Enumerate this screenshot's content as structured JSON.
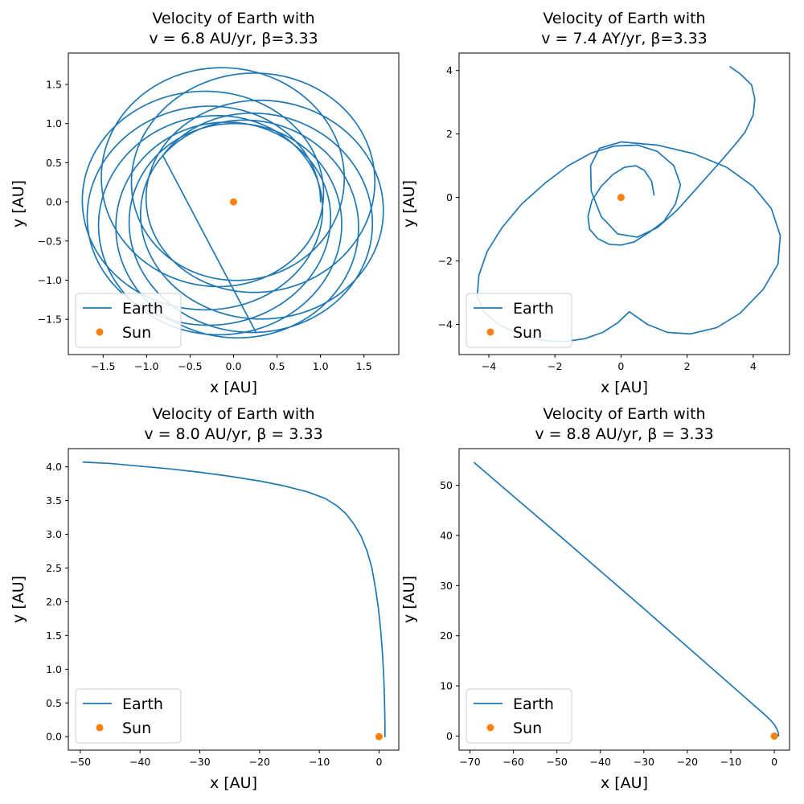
{
  "figure": {
    "background": "#ffffff"
  },
  "colors": {
    "earth": "#1f77b4",
    "sun": "#ff7f0e"
  },
  "chart_data": [
    {
      "type": "line",
      "title": [
        "Velocity of Earth with",
        "v = 6.8 AU/yr, β=3.33"
      ],
      "xlabel": "x [AU]",
      "ylabel": "y [AU]",
      "xlim": [
        -1.9,
        1.9
      ],
      "ylim": [
        -1.95,
        1.9
      ],
      "xticks": [
        -1.5,
        -1.0,
        -0.5,
        0.0,
        0.5,
        1.0,
        1.5
      ],
      "xtick_labels": [
        "−1.5",
        "−1.0",
        "−0.5",
        "0.0",
        "0.5",
        "1.0",
        "1.5"
      ],
      "yticks": [
        -1.5,
        -1.0,
        -0.5,
        0.0,
        0.5,
        1.0,
        1.5
      ],
      "ytick_labels": [
        "−1.5",
        "−1.0",
        "−0.5",
        "0.0",
        "0.5",
        "1.0",
        "1.5"
      ],
      "legend": {
        "placement": "lower-left",
        "entries": [
          "Earth",
          "Sun"
        ]
      },
      "grid": false,
      "series": [
        {
          "name": "Earth",
          "kind": "line",
          "trajectory": {
            "model": "precessing-ellipse",
            "a": 1.37,
            "e": 0.27,
            "precession_deg_per_orbit": 55,
            "orbits": 9.4,
            "start": [
              1.0,
              0.0
            ],
            "end": [
              0.26,
              -1.67
            ]
          }
        },
        {
          "name": "Sun",
          "kind": "point",
          "x": [
            0.0
          ],
          "y": [
            0.0
          ]
        }
      ]
    },
    {
      "type": "line",
      "title": [
        "Velocity of Earth with",
        "v = 7.4 AY/yr, β=3.33"
      ],
      "xlabel": "x [AU]",
      "ylabel": "y [AU]",
      "xlim": [
        -4.9,
        5.1
      ],
      "ylim": [
        -4.95,
        4.55
      ],
      "xticks": [
        -4,
        -2,
        0,
        2,
        4
      ],
      "xtick_labels": [
        "−4",
        "−2",
        "0",
        "2",
        "4"
      ],
      "yticks": [
        -4,
        -2,
        0,
        2,
        4
      ],
      "ytick_labels": [
        "−4",
        "−2",
        "0",
        "2",
        "4"
      ],
      "legend": {
        "placement": "lower-left",
        "entries": [
          "Earth",
          "Sun"
        ]
      },
      "grid": false,
      "series": [
        {
          "name": "Earth",
          "kind": "line",
          "x": [
            1.0,
            0.93,
            0.71,
            0.45,
            0.1,
            -0.25,
            -0.6,
            -0.88,
            -1.0,
            -0.95,
            -0.7,
            -0.35,
            0.0,
            0.4,
            0.85,
            1.3,
            1.65,
            1.8,
            1.6,
            1.1,
            0.5,
            -0.2,
            -0.9,
            -1.6,
            -2.3,
            -3.0,
            -3.6,
            -4.05,
            -4.3,
            -4.35,
            -4.15,
            -3.7,
            -3.1,
            -2.4,
            -1.75,
            -1.1,
            -0.55,
            -0.1,
            0.25,
            0.8,
            1.4,
            2.1,
            2.9,
            3.6,
            4.3,
            4.75,
            4.82,
            4.55,
            4.0,
            3.2,
            2.2,
            1.1,
            0.0,
            -0.65,
            -0.92,
            -0.9,
            -0.6,
            -0.1,
            0.5,
            1.1,
            1.7,
            2.3,
            2.9,
            3.4,
            3.75,
            4.0,
            4.05,
            3.95,
            3.6,
            3.3
          ],
          "y": [
            0.08,
            0.5,
            0.85,
            1.0,
            0.95,
            0.72,
            0.35,
            -0.1,
            -0.6,
            -1.0,
            -1.3,
            -1.48,
            -1.5,
            -1.4,
            -1.1,
            -0.75,
            -0.2,
            0.4,
            1.0,
            1.45,
            1.65,
            1.62,
            1.4,
            1.0,
            0.45,
            -0.2,
            -0.95,
            -1.7,
            -2.45,
            -3.1,
            -3.6,
            -4.0,
            -4.3,
            -4.5,
            -4.55,
            -4.45,
            -4.25,
            -3.95,
            -3.6,
            -4.0,
            -4.25,
            -4.3,
            -4.1,
            -3.65,
            -2.9,
            -2.1,
            -1.2,
            -0.35,
            0.35,
            0.95,
            1.38,
            1.65,
            1.75,
            1.55,
            1.0,
            0.2,
            -0.6,
            -1.15,
            -1.25,
            -0.95,
            -0.4,
            0.3,
            1.0,
            1.6,
            2.05,
            2.6,
            3.1,
            3.55,
            3.9,
            4.12
          ]
        },
        {
          "name": "Sun",
          "kind": "point",
          "x": [
            0.0
          ],
          "y": [
            0.0
          ]
        }
      ]
    },
    {
      "type": "line",
      "title": [
        "Velocity of Earth with",
        "v = 8.0 AU/yr, β = 3.33"
      ],
      "xlabel": "x [AU]",
      "ylabel": "y [AU]",
      "xlim": [
        -52,
        3.3
      ],
      "ylim": [
        -0.2,
        4.27
      ],
      "xticks": [
        -50,
        -40,
        -30,
        -20,
        -10,
        0
      ],
      "xtick_labels": [
        "−50",
        "−40",
        "−30",
        "−20",
        "−10",
        "0"
      ],
      "yticks": [
        0.0,
        0.5,
        1.0,
        1.5,
        2.0,
        2.5,
        3.0,
        3.5,
        4.0
      ],
      "ytick_labels": [
        "0.0",
        "0.5",
        "1.0",
        "1.5",
        "2.0",
        "2.5",
        "3.0",
        "3.5",
        "4.0"
      ],
      "legend": {
        "placement": "lower-left",
        "entries": [
          "Earth",
          "Sun"
        ]
      },
      "grid": false,
      "series": [
        {
          "name": "Earth",
          "kind": "line",
          "x": [
            1.0,
            0.98,
            0.92,
            0.8,
            0.6,
            0.3,
            -0.1,
            -0.6,
            -1.2,
            -2.0,
            -3.0,
            -4.2,
            -5.5,
            -7.0,
            -9.0,
            -12.0,
            -16.0,
            -20.0,
            -25.0,
            -30.0,
            -35.0,
            -40.0,
            -45.0,
            -49.5
          ],
          "y": [
            0.0,
            0.2,
            0.5,
            0.85,
            1.2,
            1.55,
            1.9,
            2.2,
            2.5,
            2.75,
            2.97,
            3.15,
            3.3,
            3.42,
            3.53,
            3.63,
            3.72,
            3.79,
            3.86,
            3.92,
            3.97,
            4.01,
            4.05,
            4.07
          ]
        },
        {
          "name": "Sun",
          "kind": "point",
          "x": [
            0.0
          ],
          "y": [
            0.0
          ]
        }
      ]
    },
    {
      "type": "line",
      "title": [
        "Velocity of Earth with",
        "v = 8.8 AU/yr, β = 3.33"
      ],
      "xlabel": "x [AU]",
      "ylabel": "y [AU]",
      "xlim": [
        -72.5,
        3.5
      ],
      "ylim": [
        -2.8,
        57.3
      ],
      "xticks": [
        -70,
        -60,
        -50,
        -40,
        -30,
        -20,
        -10,
        0
      ],
      "xtick_labels": [
        "−70",
        "−60",
        "−50",
        "−40",
        "−30",
        "−20",
        "−10",
        "0"
      ],
      "yticks": [
        0,
        10,
        20,
        30,
        40,
        50
      ],
      "ytick_labels": [
        "0",
        "10",
        "20",
        "30",
        "40",
        "50"
      ],
      "legend": {
        "placement": "lower-left",
        "entries": [
          "Earth",
          "Sun"
        ]
      },
      "grid": false,
      "series": [
        {
          "name": "Earth",
          "kind": "line",
          "x": [
            1.0,
            0.9,
            0.6,
            0.0,
            -1.0,
            -2.5,
            -5.0,
            -10.0,
            -20.0,
            -30.0,
            -40.0,
            -50.0,
            -60.0,
            -69.0
          ],
          "y": [
            0.0,
            0.7,
            1.4,
            2.3,
            3.3,
            4.5,
            6.4,
            10.2,
            17.8,
            25.4,
            32.9,
            40.4,
            47.8,
            54.5
          ]
        },
        {
          "name": "Sun",
          "kind": "point",
          "x": [
            0.0
          ],
          "y": [
            0.0
          ]
        }
      ]
    }
  ]
}
